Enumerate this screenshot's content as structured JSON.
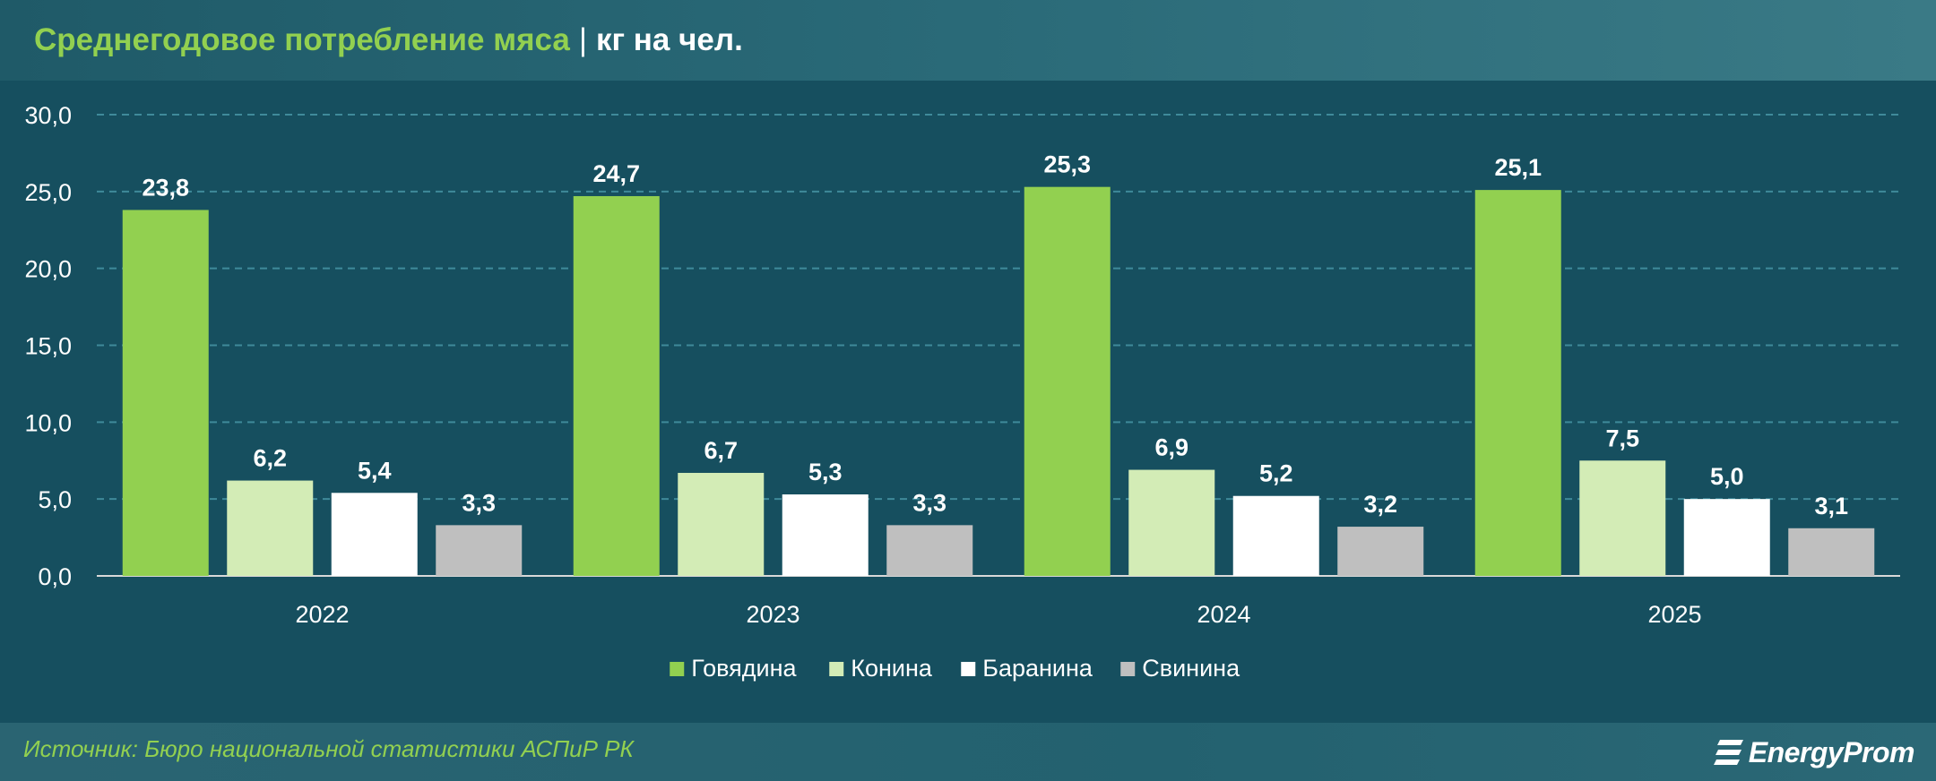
{
  "header": {
    "title": "Среднегодовое потребление мяса",
    "separator": "|",
    "unit": "кг на чел."
  },
  "footer": {
    "source": "Источник: Бюро национальной статистики АСПиР РК",
    "logo_text": "EnergyProm"
  },
  "colors": {
    "background": "#164f5f",
    "title_green": "#92d050",
    "grid": "#3f8a9a"
  },
  "chart_data": {
    "type": "bar",
    "categories": [
      "2022",
      "2023",
      "2024",
      "2025"
    ],
    "series": [
      {
        "name": "Говядина",
        "color": "#92d050",
        "values": [
          23.8,
          24.7,
          25.3,
          25.1
        ],
        "labels": [
          "23,8",
          "24,7",
          "25,3",
          "25,1"
        ]
      },
      {
        "name": "Конина",
        "color": "#d3ecb6",
        "values": [
          6.2,
          6.7,
          6.9,
          7.5
        ],
        "labels": [
          "6,2",
          "6,7",
          "6,9",
          "7,5"
        ]
      },
      {
        "name": "Баранина",
        "color": "#ffffff",
        "values": [
          5.4,
          5.3,
          5.2,
          5.0
        ],
        "labels": [
          "5,4",
          "5,3",
          "5,2",
          "5,0"
        ]
      },
      {
        "name": "Свинина",
        "color": "#bfbfbf",
        "values": [
          3.3,
          3.3,
          3.2,
          3.1
        ],
        "labels": [
          "3,3",
          "3,3",
          "3,2",
          "3,1"
        ]
      }
    ],
    "ylim": [
      0,
      30
    ],
    "yticks": [
      "0,0",
      "5,0",
      "10,0",
      "15,0",
      "20,0",
      "25,0",
      "30,0"
    ],
    "ytick_values": [
      0,
      5,
      10,
      15,
      20,
      25,
      30
    ],
    "grid": true,
    "legend_position": "bottom-center"
  }
}
